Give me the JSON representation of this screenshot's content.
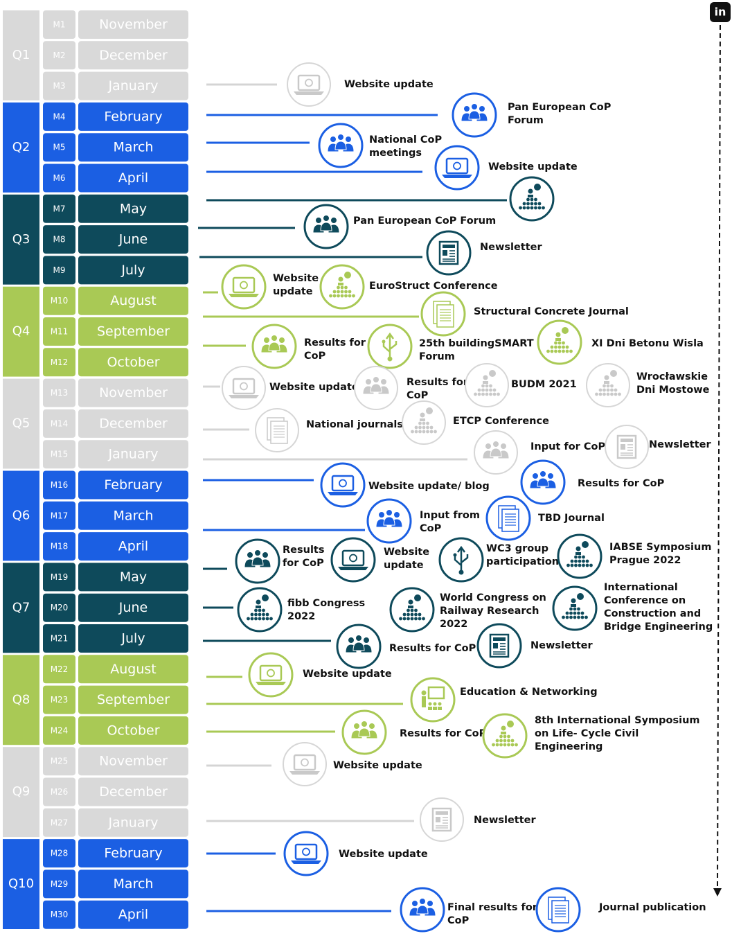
{
  "linkedin": "in",
  "quarters": [
    {
      "label": "Q1",
      "months": [
        {
          "code": "M1",
          "name": "November"
        },
        {
          "code": "M2",
          "name": "December"
        },
        {
          "code": "M3",
          "name": "January"
        }
      ]
    },
    {
      "label": "Q2",
      "months": [
        {
          "code": "M4",
          "name": "February"
        },
        {
          "code": "M5",
          "name": "March"
        },
        {
          "code": "M6",
          "name": "April"
        }
      ]
    },
    {
      "label": "Q3",
      "months": [
        {
          "code": "M7",
          "name": "May"
        },
        {
          "code": "M8",
          "name": "June"
        },
        {
          "code": "M9",
          "name": "July"
        }
      ]
    },
    {
      "label": "Q4",
      "months": [
        {
          "code": "M10",
          "name": "August"
        },
        {
          "code": "M11",
          "name": "September"
        },
        {
          "code": "M12",
          "name": "October"
        }
      ]
    },
    {
      "label": "Q5",
      "months": [
        {
          "code": "M13",
          "name": "November"
        },
        {
          "code": "M14",
          "name": "December"
        },
        {
          "code": "M15",
          "name": "January"
        }
      ]
    },
    {
      "label": "Q6",
      "months": [
        {
          "code": "M16",
          "name": "February"
        },
        {
          "code": "M17",
          "name": "March"
        },
        {
          "code": "M18",
          "name": "April"
        }
      ]
    },
    {
      "label": "Q7",
      "months": [
        {
          "code": "M19",
          "name": "May"
        },
        {
          "code": "M20",
          "name": "June"
        },
        {
          "code": "M21",
          "name": "July"
        }
      ]
    },
    {
      "label": "Q8",
      "months": [
        {
          "code": "M22",
          "name": "August"
        },
        {
          "code": "M23",
          "name": "September"
        },
        {
          "code": "M24",
          "name": "October"
        }
      ]
    },
    {
      "label": "Q9",
      "months": [
        {
          "code": "M25",
          "name": "November"
        },
        {
          "code": "M26",
          "name": "December"
        },
        {
          "code": "M27",
          "name": "January"
        }
      ]
    },
    {
      "label": "Q10",
      "months": [
        {
          "code": "M28",
          "name": "February"
        },
        {
          "code": "M29",
          "name": "March"
        },
        {
          "code": "M30",
          "name": "April"
        }
      ]
    }
  ],
  "events": [
    {
      "label": [
        "Website update"
      ]
    },
    {
      "label": [
        "Pan European CoP",
        "Forum"
      ]
    },
    {
      "label": [
        "National CoP",
        "meetings"
      ]
    },
    {
      "label": [
        "Website update"
      ]
    },
    {
      "label": [
        "Pan European CoP Forum"
      ]
    },
    {
      "label": [
        "Newsletter"
      ]
    },
    {
      "label": [
        "Website",
        "update"
      ]
    },
    {
      "label": [
        "EuroStruct Conference"
      ]
    },
    {
      "label": [
        "Structural Concrete Journal"
      ]
    },
    {
      "label": [
        "Results for",
        "CoP"
      ]
    },
    {
      "label": [
        "25th buildingSMART",
        "Forum"
      ]
    },
    {
      "label": [
        "XI Dni Betonu Wisla"
      ]
    },
    {
      "label": [
        "Website update"
      ]
    },
    {
      "label": [
        "Results for",
        "CoP"
      ]
    },
    {
      "label": [
        "BUDM 2021"
      ]
    },
    {
      "label": [
        "Wrocławskie",
        "Dni Mostowe"
      ]
    },
    {
      "label": [
        "National journals"
      ]
    },
    {
      "label": [
        "ETCP Conference"
      ]
    },
    {
      "label": [
        "Input for CoP"
      ]
    },
    {
      "label": [
        "Newsletter"
      ]
    },
    {
      "label": [
        "Website update/ blog"
      ]
    },
    {
      "label": [
        "Results for CoP"
      ]
    },
    {
      "label": [
        "Input from",
        "CoP"
      ]
    },
    {
      "label": [
        "TBD Journal"
      ]
    },
    {
      "label": [
        "Results",
        "for CoP"
      ]
    },
    {
      "label": [
        "Website",
        "update"
      ]
    },
    {
      "label": [
        "WC3 group",
        "participation"
      ]
    },
    {
      "label": [
        "IABSE Symposium",
        "Prague 2022"
      ]
    },
    {
      "label": [
        "fibb Congress",
        "2022"
      ]
    },
    {
      "label": [
        "World Congress on",
        "Railway Research",
        "2022"
      ]
    },
    {
      "label": [
        "International",
        "Conference on",
        "Construction and",
        "Bridge Engineering"
      ]
    },
    {
      "label": [
        "Results for CoP"
      ]
    },
    {
      "label": [
        "Newsletter"
      ]
    },
    {
      "label": [
        "Website update"
      ]
    },
    {
      "label": [
        "Education & Networking"
      ]
    },
    {
      "label": [
        "Results for CoP"
      ]
    },
    {
      "label": [
        "8th International Symposium",
        "on Life- Cycle Civil",
        "Engineering"
      ]
    },
    {
      "label": [
        "Website update"
      ]
    },
    {
      "label": [
        "Newsletter"
      ]
    },
    {
      "label": [
        "Website update"
      ]
    },
    {
      "label": [
        "Final results for",
        "CoP"
      ]
    },
    {
      "label": [
        "Journal publication"
      ]
    }
  ]
}
